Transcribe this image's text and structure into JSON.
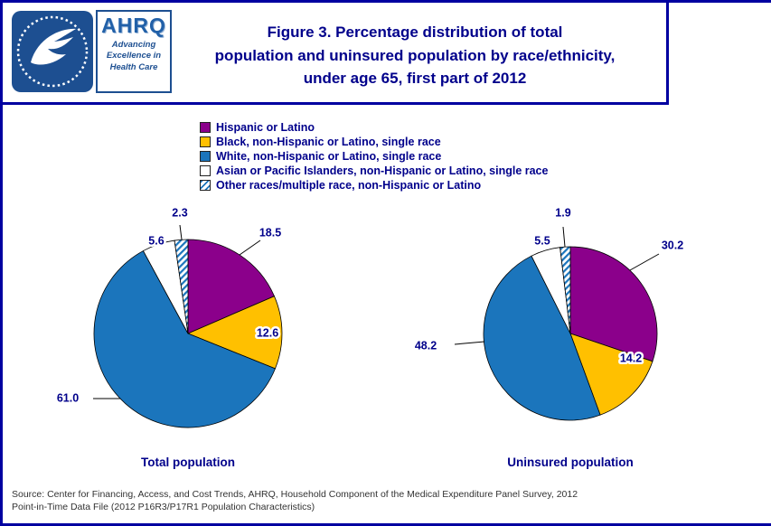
{
  "page": {
    "title_lines": [
      "Figure 3. Percentage distribution of total",
      "population and uninsured population by race/ethnicity,",
      "under age 65, first part of 2012"
    ]
  },
  "logo": {
    "name": "AHRQ",
    "tagline": [
      "Advancing",
      "Excellence in",
      "Health Care"
    ]
  },
  "legend": [
    {
      "label": "Hispanic or Latino",
      "color": "#8B008B",
      "pattern": "solid"
    },
    {
      "label": "Black, non-Hispanic or Latino, single race",
      "color": "#FFC000",
      "pattern": "solid"
    },
    {
      "label": "White, non-Hispanic or Latino, single race",
      "color": "#1B75BC",
      "pattern": "solid"
    },
    {
      "label": "Asian or Pacific Islanders, non-Hispanic or Latino, single race",
      "color": "#FFFFFF",
      "pattern": "solid"
    },
    {
      "label": "Other races/multiple race, non-Hispanic or Latino",
      "color": "#1B75BC",
      "pattern": "hatched"
    }
  ],
  "chart_data": [
    {
      "type": "pie",
      "title": "Total population",
      "categories": [
        "Hispanic or Latino",
        "Black, non-Hispanic or Latino, single race",
        "White, non-Hispanic or Latino, single race",
        "Asian or Pacific Islanders, non-Hispanic or Latino, single race",
        "Other races/multiple race, non-Hispanic or Latino"
      ],
      "values": [
        18.5,
        12.6,
        61.0,
        5.6,
        2.3
      ],
      "start_angle_deg": 0,
      "direction": "clockwise",
      "label_style": "outside, one decimal"
    },
    {
      "type": "pie",
      "title": "Uninsured population",
      "categories": [
        "Hispanic or Latino",
        "Black, non-Hispanic or Latino, single race",
        "White, non-Hispanic or Latino, single race",
        "Asian or Pacific Islanders, non-Hispanic or Latino, single race",
        "Other races/multiple race, non-Hispanic or Latino"
      ],
      "values": [
        30.2,
        14.2,
        48.2,
        5.5,
        1.9
      ],
      "start_angle_deg": 0,
      "direction": "clockwise",
      "label_style": "outside, one decimal"
    }
  ],
  "source_lines": [
    "Source: Center for Financing, Access, and Cost Trends, AHRQ, Household Component of the Medical Expenditure Panel Survey, 2012",
    "Point-in-Time Data File (2012 P16R3/P17R1 Population Characteristics)"
  ],
  "colors": {
    "navy_text": "#00008B",
    "border": "#0000A0",
    "purple": "#8B008B",
    "gold": "#FFC000",
    "blue": "#1B75BC"
  }
}
